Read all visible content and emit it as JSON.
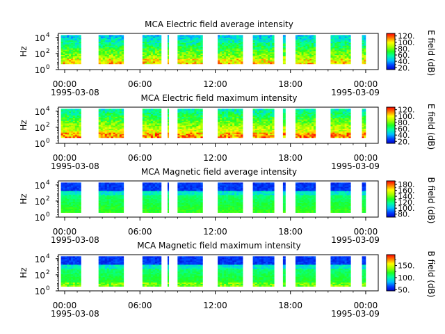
{
  "panels": [
    {
      "title": "MCA  Electric field average intensity",
      "ylabel": "Hz",
      "ytick_labels": [
        "10",
        "10",
        "10"
      ],
      "ytick_exps": [
        "0",
        "2",
        "4"
      ],
      "xtick_labels": [
        "00:00",
        "06:00",
        "12:00",
        "18:00",
        "00:00"
      ],
      "date_start": "1995-03-08",
      "date_end": "1995-03-09",
      "colorbar": {
        "label": "E field (dB)",
        "ticks": [
          20,
          40,
          60,
          80,
          100,
          120
        ],
        "tick_labels": [
          "20.",
          "40.",
          "60.",
          "80.",
          "100.",
          "120."
        ],
        "range": [
          14,
          128
        ]
      },
      "field": "E",
      "mode": "avg"
    },
    {
      "title": "MCA  Electric field maximum intensity",
      "ylabel": "Hz",
      "ytick_labels": [
        "10",
        "10",
        "10"
      ],
      "ytick_exps": [
        "0",
        "2",
        "4"
      ],
      "xtick_labels": [
        "00:00",
        "06:00",
        "12:00",
        "18:00",
        "00:00"
      ],
      "date_start": "1995-03-08",
      "date_end": "1995-03-09",
      "colorbar": {
        "label": "E field (dB)",
        "ticks": [
          20,
          40,
          60,
          80,
          100,
          120
        ],
        "tick_labels": [
          "20.",
          "40.",
          "60.",
          "80.",
          "100.",
          "120."
        ],
        "range": [
          14,
          128
        ]
      },
      "field": "E",
      "mode": "max"
    },
    {
      "title": "MCA  Magnetic field average intensity",
      "ylabel": "Hz",
      "ytick_labels": [
        "10",
        "10",
        "10"
      ],
      "ytick_exps": [
        "0",
        "2",
        "4"
      ],
      "xtick_labels": [
        "00:00",
        "06:00",
        "12:00",
        "18:00",
        "00:00"
      ],
      "date_start": "1995-03-08",
      "date_end": "1995-03-09",
      "colorbar": {
        "label": "B field (dB)",
        "ticks": [
          80,
          100,
          120,
          140,
          160,
          180
        ],
        "tick_labels": [
          "80.",
          "100.",
          "120.",
          "140.",
          "160.",
          "180."
        ],
        "range": [
          70,
          192
        ]
      },
      "field": "B",
      "mode": "avg"
    },
    {
      "title": "MCA  Magnetic field maximum intensity",
      "ylabel": "Hz",
      "ytick_labels": [
        "10",
        "10",
        "10"
      ],
      "ytick_exps": [
        "0",
        "2",
        "4"
      ],
      "xtick_labels": [
        "00:00",
        "06:00",
        "12:00",
        "18:00",
        "00:00"
      ],
      "date_start": "1995-03-08",
      "date_end": "1995-03-09",
      "colorbar": {
        "label": "B field (dB)",
        "ticks": [
          50,
          100,
          150
        ],
        "tick_labels": [
          "50.",
          "100.",
          "150."
        ],
        "range": [
          45,
          195
        ]
      },
      "field": "B",
      "mode": "max"
    }
  ],
  "chart_data": [
    {
      "type": "heatmap",
      "title": "MCA  Electric field average intensity",
      "ylabel": "Hz",
      "yscale": "log",
      "ylim_exp": [
        0,
        4.5
      ],
      "xlim_hours": [
        -0.5,
        25.0
      ],
      "xticks_hours": [
        0,
        6,
        12,
        18,
        24
      ],
      "data_intervals_hours": [
        [
          -0.3,
          1.3
        ],
        [
          2.7,
          4.7
        ],
        [
          6.2,
          7.7
        ],
        [
          8.2,
          8.3
        ],
        [
          9.0,
          11.0
        ],
        [
          12.2,
          14.2
        ],
        [
          15.0,
          16.7
        ],
        [
          17.4,
          17.6
        ],
        [
          18.4,
          20.0
        ],
        [
          21.2,
          22.8
        ],
        [
          23.7,
          24.0
        ]
      ],
      "colorbar_label": "E field (dB)",
      "colorbar_range": [
        14,
        128
      ]
    },
    {
      "type": "heatmap",
      "title": "MCA  Electric field maximum intensity",
      "ylabel": "Hz",
      "yscale": "log",
      "ylim_exp": [
        0,
        4.5
      ],
      "xlim_hours": [
        -0.5,
        25.0
      ],
      "xticks_hours": [
        0,
        6,
        12,
        18,
        24
      ],
      "data_intervals_hours": [
        [
          -0.3,
          1.3
        ],
        [
          2.7,
          4.7
        ],
        [
          6.2,
          7.7
        ],
        [
          8.2,
          8.3
        ],
        [
          9.0,
          11.0
        ],
        [
          12.2,
          14.2
        ],
        [
          15.0,
          16.7
        ],
        [
          17.4,
          17.6
        ],
        [
          18.4,
          20.0
        ],
        [
          21.2,
          22.8
        ],
        [
          23.7,
          24.0
        ]
      ],
      "colorbar_label": "E field (dB)",
      "colorbar_range": [
        14,
        128
      ]
    },
    {
      "type": "heatmap",
      "title": "MCA  Magnetic field average intensity",
      "ylabel": "Hz",
      "yscale": "log",
      "ylim_exp": [
        0,
        4.5
      ],
      "xlim_hours": [
        -0.5,
        25.0
      ],
      "xticks_hours": [
        0,
        6,
        12,
        18,
        24
      ],
      "data_intervals_hours": [
        [
          -0.3,
          1.3
        ],
        [
          2.7,
          4.7
        ],
        [
          6.2,
          7.7
        ],
        [
          8.2,
          8.3
        ],
        [
          9.0,
          11.0
        ],
        [
          12.2,
          14.2
        ],
        [
          15.0,
          16.7
        ],
        [
          17.4,
          17.6
        ],
        [
          18.4,
          20.0
        ],
        [
          21.2,
          22.8
        ],
        [
          23.7,
          24.0
        ]
      ],
      "colorbar_label": "B field (dB)",
      "colorbar_range": [
        70,
        192
      ]
    },
    {
      "type": "heatmap",
      "title": "MCA  Magnetic field maximum intensity",
      "ylabel": "Hz",
      "yscale": "log",
      "ylim_exp": [
        0,
        4.5
      ],
      "xlim_hours": [
        -0.5,
        25.0
      ],
      "xticks_hours": [
        0,
        6,
        12,
        18,
        24
      ],
      "data_intervals_hours": [
        [
          -0.3,
          1.3
        ],
        [
          2.7,
          4.7
        ],
        [
          6.2,
          7.7
        ],
        [
          8.2,
          8.3
        ],
        [
          9.0,
          11.0
        ],
        [
          12.2,
          14.2
        ],
        [
          15.0,
          16.7
        ],
        [
          17.4,
          17.6
        ],
        [
          18.4,
          20.0
        ],
        [
          21.2,
          22.8
        ],
        [
          23.7,
          24.0
        ]
      ],
      "colorbar_label": "B field (dB)",
      "colorbar_range": [
        45,
        195
      ]
    }
  ]
}
